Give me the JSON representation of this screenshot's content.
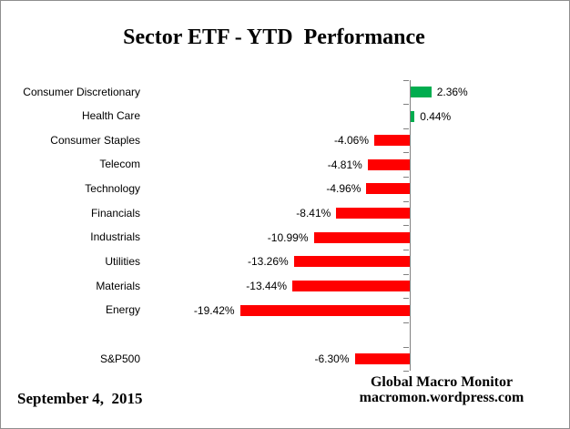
{
  "chart_data": {
    "type": "bar",
    "orientation": "horizontal",
    "title": "Sector ETF - YTD  Performance",
    "unit": "%",
    "categories": [
      "Consumer Discretionary",
      "Health Care",
      "Consumer Staples",
      "Telecom",
      "Technology",
      "Financials",
      "Industrials",
      "Utilities",
      "Materials",
      "Energy",
      "S&P500"
    ],
    "values": [
      2.36,
      0.44,
      -4.06,
      -4.81,
      -4.96,
      -8.41,
      -10.99,
      -13.26,
      -13.44,
      -19.42,
      -6.3
    ],
    "value_labels": [
      "2.36%",
      "0.44%",
      "-4.06%",
      "-4.81%",
      "-4.96%",
      "-8.41%",
      "-10.99%",
      "-13.26%",
      "-13.44%",
      "-19.42%",
      "-6.30%"
    ],
    "legend": "none",
    "grid": "off",
    "layout_hints": {
      "gap_row_before_last": true,
      "value_labels_position": "outside-end",
      "baseline_at_zero": true
    }
  },
  "colors": {
    "positive": "#00AD4F",
    "negative": "#FF0000",
    "axis": "#808080",
    "text": "#000000",
    "border": "#8F8F8F"
  },
  "footer": {
    "date": "September 4,  2015",
    "source_name": "Global Macro Monitor",
    "source_url": "macromon.wordpress.com"
  }
}
